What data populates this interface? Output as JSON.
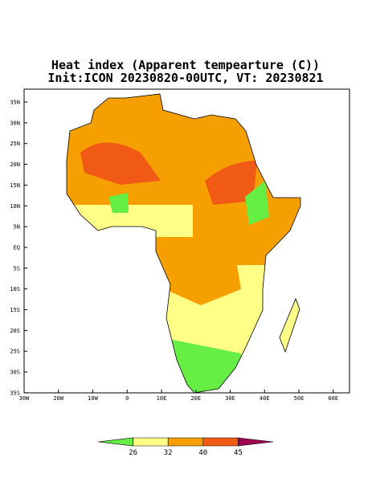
{
  "title": [
    "Heat index (Apparent tempearture (C))",
    "Init:ICON 20230820-00UTC, VT: 20230821"
  ],
  "map": {
    "lat_labels": [
      "35N",
      "30N",
      "25N",
      "20N",
      "15N",
      "10N",
      "5N",
      "EQ",
      "5S",
      "10S",
      "15S",
      "20S",
      "25S",
      "30S",
      "35S"
    ],
    "lon_labels": [
      "30W",
      "20W",
      "10W",
      "0",
      "10E",
      "20E",
      "30E",
      "40E",
      "50E",
      "60E"
    ]
  },
  "colorbar": {
    "levels": [
      26,
      32,
      40,
      45
    ],
    "colors": [
      "#66ee44",
      "#ffff88",
      "#f5a000",
      "#f05a14",
      "#a00050"
    ]
  }
}
